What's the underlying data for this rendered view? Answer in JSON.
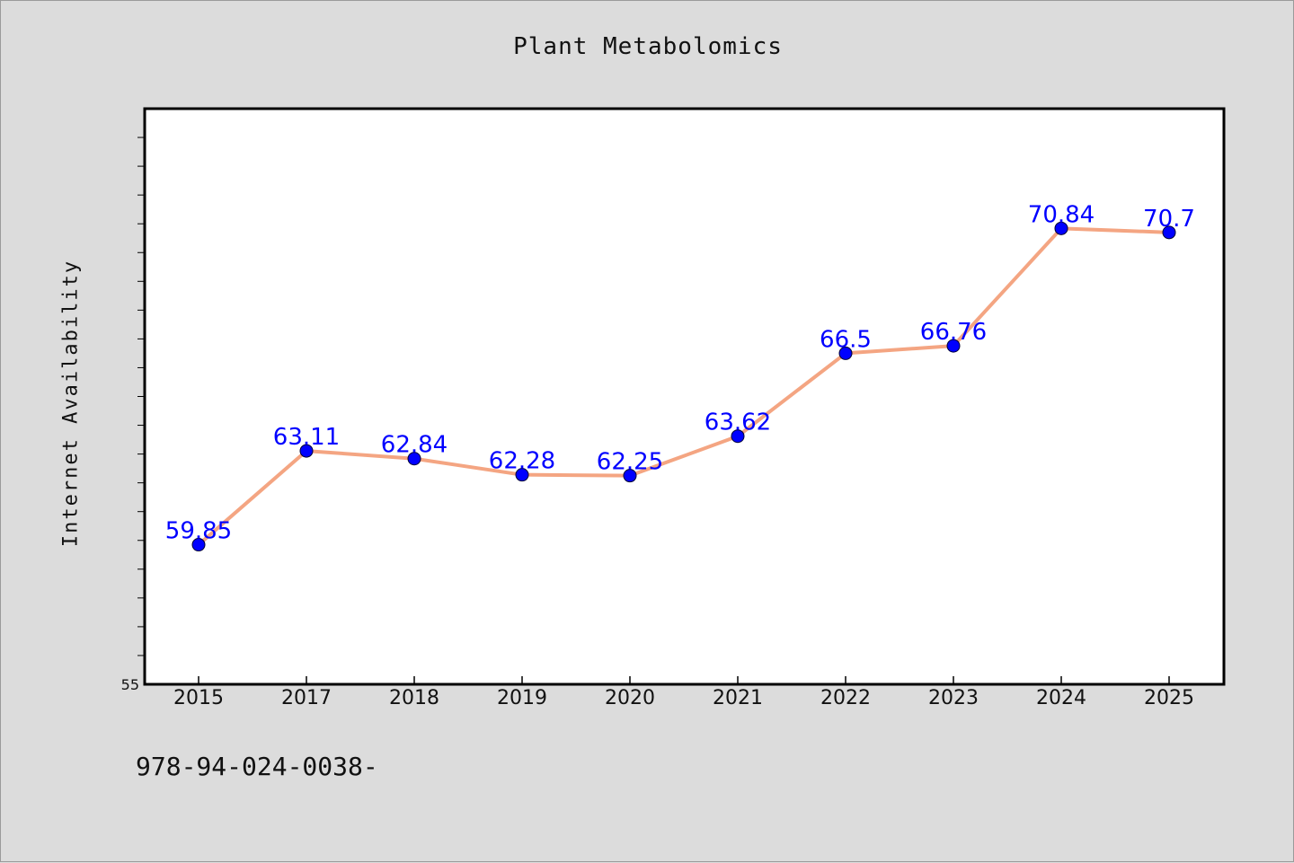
{
  "title": "Plant Metabolomics",
  "footnote": "978-94-024-0038-",
  "chart_data": {
    "type": "line",
    "title": "Plant Metabolomics",
    "xlabel": "",
    "ylabel": "Internet Availability",
    "categories": [
      "2015",
      "2017",
      "2018",
      "2019",
      "2020",
      "2021",
      "2022",
      "2023",
      "2024",
      "2025"
    ],
    "series": [
      {
        "values": [
          59.85,
          63.11,
          62.84,
          62.28,
          62.25,
          63.62,
          66.5,
          66.76,
          70.84,
          70.7
        ],
        "data_labels": [
          "59.85",
          "63.11",
          "62.84",
          "62.28",
          "62.25",
          "63.62",
          "66.5",
          "66.76",
          "70.84",
          "70.7"
        ]
      }
    ],
    "ylim": [
      55,
      75
    ],
    "y_tick_labels": [
      "55"
    ],
    "grid": false,
    "legend": "none",
    "colors": {
      "line": "#f4a582",
      "marker": "#0000ff",
      "data_label": "#0000ff",
      "background": "#dcdcdc",
      "plot_area": "#ffffff"
    }
  }
}
